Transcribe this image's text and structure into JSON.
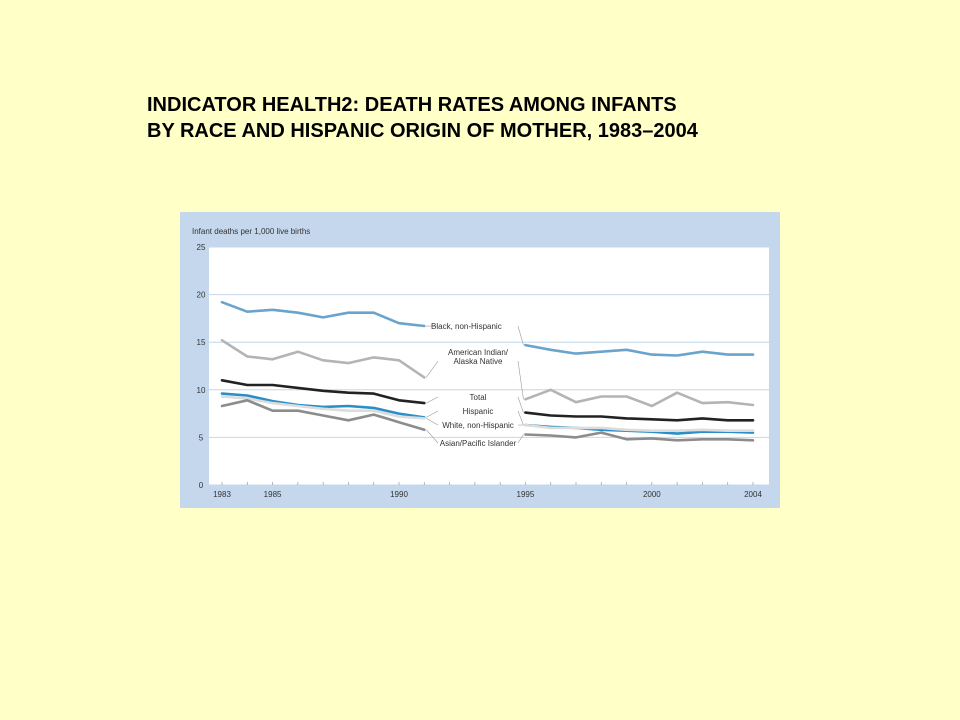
{
  "title": {
    "line1": "INDICATOR HEALTH2: DEATH RATES AMONG INFANTS",
    "line2": "BY RACE AND HISPANIC ORIGIN OF MOTHER, 1983–2004"
  },
  "chart_data": {
    "type": "line",
    "ylabel": "Infant deaths per 1,000 live births",
    "ylim": [
      0,
      25
    ],
    "xlim": [
      1983,
      2004
    ],
    "y_ticks": [
      "0",
      "5",
      "10",
      "15",
      "20",
      "25"
    ],
    "x_ticks": [
      "1983",
      "1985",
      "1990",
      "1995",
      "2000",
      "2004"
    ],
    "grid": true,
    "gap_between": [
      1991,
      1995
    ],
    "series": [
      {
        "name": "Black, non-Hispanic",
        "color": "#6aa3cc",
        "x": [
          1983,
          1984,
          1985,
          1986,
          1987,
          1988,
          1989,
          1990,
          1991,
          1995,
          1996,
          1997,
          1998,
          1999,
          2000,
          2001,
          2002,
          2003,
          2004
        ],
        "values": [
          19.2,
          18.2,
          18.4,
          18.1,
          17.6,
          18.1,
          18.1,
          17.0,
          16.7,
          14.7,
          14.2,
          13.8,
          14.0,
          14.2,
          13.7,
          13.6,
          14.0,
          13.7,
          13.7
        ]
      },
      {
        "name": "American Indian/ Alaska Native",
        "label_lines": [
          "American Indian/",
          "Alaska Native"
        ],
        "color": "#b4b4b4",
        "x": [
          1983,
          1984,
          1985,
          1986,
          1987,
          1988,
          1989,
          1990,
          1991,
          1995,
          1996,
          1997,
          1998,
          1999,
          2000,
          2001,
          2002,
          2003,
          2004
        ],
        "values": [
          15.2,
          13.5,
          13.2,
          14.0,
          13.1,
          12.8,
          13.4,
          13.1,
          11.3,
          9.0,
          10.0,
          8.7,
          9.3,
          9.3,
          8.3,
          9.7,
          8.6,
          8.7,
          8.4
        ]
      },
      {
        "name": "Total",
        "color": "#222222",
        "x": [
          1983,
          1984,
          1985,
          1986,
          1987,
          1988,
          1989,
          1990,
          1991,
          1995,
          1996,
          1997,
          1998,
          1999,
          2000,
          2001,
          2002,
          2003,
          2004
        ],
        "values": [
          11.0,
          10.5,
          10.5,
          10.2,
          9.9,
          9.7,
          9.6,
          8.9,
          8.6,
          7.6,
          7.3,
          7.2,
          7.2,
          7.0,
          6.9,
          6.8,
          7.0,
          6.8,
          6.8
        ]
      },
      {
        "name": "Hispanic",
        "color": "#2a8fc8",
        "x": [
          1983,
          1984,
          1985,
          1986,
          1987,
          1988,
          1989,
          1990,
          1991,
          1995,
          1996,
          1997,
          1998,
          1999,
          2000,
          2001,
          2002,
          2003,
          2004
        ],
        "values": [
          9.6,
          9.4,
          8.8,
          8.4,
          8.2,
          8.3,
          8.1,
          7.5,
          7.1,
          6.3,
          6.1,
          6.0,
          5.8,
          5.7,
          5.6,
          5.4,
          5.6,
          5.6,
          5.5
        ]
      },
      {
        "name": "White, non-Hispanic",
        "color": "#dcdcdc",
        "x": [
          1983,
          1984,
          1985,
          1986,
          1987,
          1988,
          1989,
          1990,
          1991,
          1995,
          1996,
          1997,
          1998,
          1999,
          2000,
          2001,
          2002,
          2003,
          2004
        ],
        "values": [
          9.3,
          9.1,
          8.6,
          8.3,
          8.0,
          7.8,
          7.8,
          7.2,
          7.0,
          6.3,
          6.0,
          6.0,
          6.0,
          5.8,
          5.7,
          5.7,
          5.8,
          5.7,
          5.7
        ]
      },
      {
        "name": "Asian/Pacific Islander",
        "color": "#8c8c8c",
        "x": [
          1983,
          1984,
          1985,
          1986,
          1987,
          1988,
          1989,
          1990,
          1991,
          1995,
          1996,
          1997,
          1998,
          1999,
          2000,
          2001,
          2002,
          2003,
          2004
        ],
        "values": [
          8.3,
          8.9,
          7.8,
          7.8,
          7.3,
          6.8,
          7.4,
          6.6,
          5.8,
          5.3,
          5.2,
          5.0,
          5.5,
          4.8,
          4.9,
          4.7,
          4.8,
          4.8,
          4.7
        ]
      }
    ]
  }
}
